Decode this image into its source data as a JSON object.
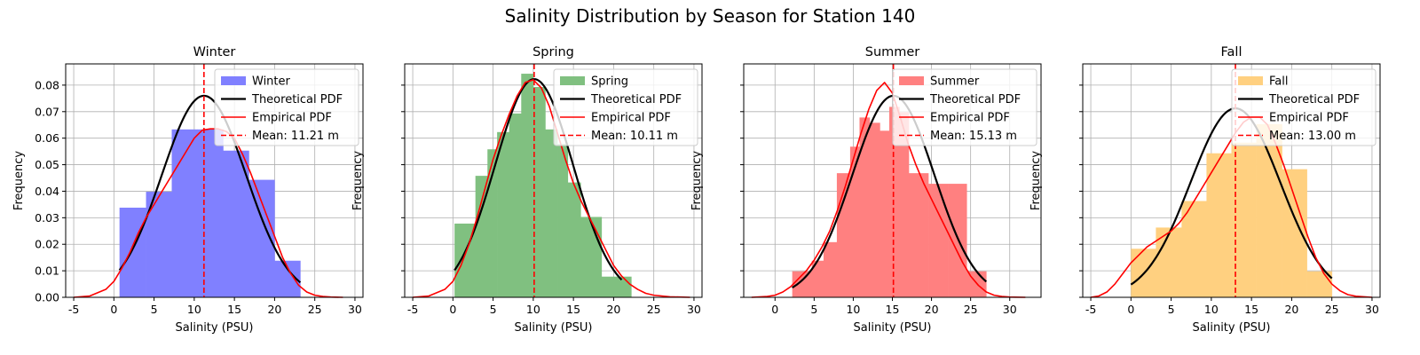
{
  "figure": {
    "title": "Salinity Distribution by Season for Station 140"
  },
  "chart_data": [
    {
      "type": "bar",
      "title": "Winter",
      "xlabel": "Salinity (PSU)",
      "ylabel": "Frequency",
      "xlim": [
        -6,
        31
      ],
      "ylim": [
        0,
        0.088
      ],
      "xticks": [
        -5,
        0,
        5,
        10,
        15,
        20,
        25,
        30
      ],
      "yticks": [
        0.0,
        0.01,
        0.02,
        0.03,
        0.04,
        0.05,
        0.06,
        0.07,
        0.08
      ],
      "grid": true,
      "legend_position": "top-right",
      "color": "#8080ff",
      "histogram": {
        "name": "Winter",
        "bin_edges": [
          0.7,
          4.0,
          7.2,
          10.4,
          13.6,
          16.8,
          20.0,
          23.2
        ],
        "values": [
          0.0338,
          0.0398,
          0.0633,
          0.0633,
          0.0553,
          0.0443,
          0.0138
        ]
      },
      "theoretical_pdf": {
        "name": "Theoretical PDF",
        "mean": 11.21,
        "sd": 5.25,
        "x_range": [
          0.7,
          23.2
        ]
      },
      "empirical_pdf": {
        "name": "Empirical PDF",
        "x": [
          -5,
          -3,
          -1,
          0,
          1,
          2,
          3,
          4,
          5,
          6,
          7,
          8,
          9,
          10,
          11,
          12,
          13,
          14,
          15,
          16,
          17,
          18,
          19,
          20,
          21,
          22,
          23,
          24,
          25,
          26,
          27,
          28.5
        ],
        "y": [
          0.0,
          0.0005,
          0.003,
          0.006,
          0.011,
          0.017,
          0.024,
          0.03,
          0.035,
          0.04,
          0.045,
          0.05,
          0.055,
          0.06,
          0.063,
          0.0635,
          0.0635,
          0.0625,
          0.06,
          0.054,
          0.047,
          0.039,
          0.031,
          0.023,
          0.015,
          0.009,
          0.0045,
          0.002,
          0.0008,
          0.0003,
          0.0001,
          0.0
        ]
      },
      "mean_line": {
        "value": 11.21,
        "label": "Mean: 11.21 m"
      }
    },
    {
      "type": "bar",
      "title": "Spring",
      "xlabel": "Salinity (PSU)",
      "ylabel": "Frequency",
      "xlim": [
        -6,
        31
      ],
      "ylim": [
        0,
        0.088
      ],
      "xticks": [
        -5,
        0,
        5,
        10,
        15,
        20,
        25,
        30
      ],
      "yticks": [],
      "grid": true,
      "legend_position": "top-right",
      "color": "#80c080",
      "histogram": {
        "name": "Spring",
        "bin_edges": [
          0.2,
          2.8,
          5.5,
          8.0,
          10.7,
          13.3,
          15.9,
          18.5,
          21.1
        ],
        "values": [
          0.0278,
          0.0458,
          0.0623,
          0.0843,
          0.0633,
          0.0433,
          0.0303,
          0.0078
        ],
        "bins": [
          [
            0.2,
            2.8,
            0.0278
          ],
          [
            2.8,
            4.3,
            0.0458
          ],
          [
            4.3,
            5.5,
            0.0558
          ],
          [
            5.5,
            7.0,
            0.0623
          ],
          [
            7.0,
            8.5,
            0.0693
          ],
          [
            8.5,
            10.0,
            0.0843
          ],
          [
            10.0,
            11.5,
            0.0793
          ],
          [
            11.5,
            13.0,
            0.0633
          ],
          [
            13.0,
            14.3,
            0.0578
          ],
          [
            14.3,
            15.9,
            0.0433
          ],
          [
            15.9,
            18.5,
            0.0303
          ],
          [
            18.5,
            20.0,
            0.0078
          ],
          [
            20.0,
            22.2,
            0.0078
          ]
        ]
      },
      "theoretical_pdf": {
        "name": "Theoretical PDF",
        "mean": 10.11,
        "sd": 4.85,
        "x_range": [
          0.2,
          21.0
        ]
      },
      "empirical_pdf": {
        "name": "Empirical PDF",
        "x": [
          -5,
          -3,
          -1,
          0,
          1,
          2,
          3,
          4,
          5,
          6,
          7,
          8,
          9,
          10,
          11,
          12,
          13,
          14,
          15,
          16,
          17,
          18,
          19,
          20,
          21,
          22,
          23,
          24,
          25,
          27,
          29.5
        ],
        "y": [
          0.0,
          0.0005,
          0.003,
          0.006,
          0.012,
          0.02,
          0.03,
          0.041,
          0.052,
          0.061,
          0.069,
          0.076,
          0.081,
          0.082,
          0.079,
          0.072,
          0.062,
          0.052,
          0.043,
          0.036,
          0.03,
          0.024,
          0.018,
          0.012,
          0.008,
          0.005,
          0.003,
          0.0015,
          0.0008,
          0.0002,
          0.0
        ]
      },
      "mean_line": {
        "value": 10.11,
        "label": "Mean: 10.11 m"
      }
    },
    {
      "type": "bar",
      "title": "Summer",
      "xlabel": "Salinity (PSU)",
      "ylabel": "Frequency",
      "xlim": [
        -4,
        34
      ],
      "ylim": [
        0,
        0.088
      ],
      "xticks": [
        0,
        5,
        10,
        15,
        20,
        25,
        30
      ],
      "yticks": [],
      "grid": true,
      "legend_position": "top-right",
      "color": "#ff8080",
      "histogram": {
        "name": "Summer",
        "bin_edges": [
          2.2,
          4.7,
          7.1,
          9.6,
          12.1,
          14.6,
          17.1,
          19.6,
          22.1,
          24.5,
          27.0
        ],
        "values": [
          0.0098,
          0.0208,
          0.0468,
          0.0678,
          0.0658,
          0.0628,
          0.0468,
          0.0428,
          0.0098,
          0.0098
        ],
        "bins": [
          [
            2.2,
            4.7,
            0.0098
          ],
          [
            4.7,
            6.2,
            0.0138
          ],
          [
            6.2,
            7.9,
            0.0208
          ],
          [
            7.9,
            9.6,
            0.0468
          ],
          [
            9.6,
            10.8,
            0.0568
          ],
          [
            10.8,
            12.1,
            0.0678
          ],
          [
            12.1,
            13.4,
            0.0658
          ],
          [
            13.4,
            14.6,
            0.0628
          ],
          [
            14.6,
            15.9,
            0.0718
          ],
          [
            15.9,
            17.1,
            0.0698
          ],
          [
            17.1,
            18.5,
            0.0468
          ],
          [
            18.5,
            19.6,
            0.0468
          ],
          [
            19.6,
            22.1,
            0.0428
          ],
          [
            22.1,
            24.5,
            0.0428
          ],
          [
            24.5,
            27.0,
            0.0098
          ]
        ]
      },
      "theoretical_pdf": {
        "name": "Theoretical PDF",
        "mean": 15.13,
        "sd": 5.25,
        "x_range": [
          2.2,
          27.0
        ]
      },
      "empirical_pdf": {
        "name": "Empirical PDF",
        "x": [
          -3,
          -1,
          0,
          1,
          2,
          3,
          4,
          5,
          6,
          7,
          8,
          9,
          10,
          11,
          12,
          13,
          14,
          15,
          16,
          17,
          18,
          19,
          20,
          21,
          22,
          23,
          24,
          25,
          26,
          27,
          28,
          29,
          30,
          32
        ],
        "y": [
          0.0,
          0.0003,
          0.0008,
          0.002,
          0.004,
          0.007,
          0.01,
          0.014,
          0.019,
          0.025,
          0.033,
          0.042,
          0.052,
          0.062,
          0.071,
          0.078,
          0.081,
          0.077,
          0.068,
          0.058,
          0.05,
          0.043,
          0.037,
          0.031,
          0.025,
          0.019,
          0.013,
          0.008,
          0.0045,
          0.002,
          0.0008,
          0.0003,
          0.0001,
          0.0
        ]
      },
      "mean_line": {
        "value": 15.13,
        "label": "Mean: 15.13 m"
      }
    },
    {
      "type": "bar",
      "title": "Fall",
      "xlabel": "Salinity (PSU)",
      "ylabel": "Frequency",
      "xlim": [
        -6,
        31
      ],
      "ylim": [
        0,
        0.088
      ],
      "xticks": [
        -5,
        0,
        5,
        10,
        15,
        20,
        25,
        30
      ],
      "yticks": [],
      "grid": true,
      "legend_position": "top-right",
      "color": "#ffd080",
      "histogram": {
        "name": "Fall",
        "bin_edges": [
          0.0,
          3.1,
          6.3,
          9.4,
          12.5,
          15.6,
          18.8,
          21.9,
          25.0
        ],
        "values": [
          0.0183,
          0.0263,
          0.0363,
          0.0543,
          0.0583,
          0.0653,
          0.0483,
          0.0098
        ]
      },
      "theoretical_pdf": {
        "name": "Theoretical PDF",
        "mean": 13.0,
        "sd": 5.6,
        "x_range": [
          0.0,
          25.0
        ]
      },
      "empirical_pdf": {
        "name": "Empirical PDF",
        "x": [
          -5,
          -4,
          -3,
          -2,
          -1,
          0,
          1,
          2,
          3,
          4,
          5,
          6,
          7,
          8,
          9,
          10,
          11,
          12,
          13,
          14,
          15,
          16,
          17,
          18,
          19,
          20,
          21,
          22,
          23,
          24,
          25,
          26,
          27,
          28,
          30
        ],
        "y": [
          0.0,
          0.0005,
          0.002,
          0.005,
          0.009,
          0.013,
          0.016,
          0.019,
          0.021,
          0.023,
          0.025,
          0.028,
          0.032,
          0.037,
          0.042,
          0.047,
          0.052,
          0.057,
          0.062,
          0.066,
          0.068,
          0.068,
          0.065,
          0.058,
          0.05,
          0.041,
          0.032,
          0.023,
          0.015,
          0.009,
          0.005,
          0.0025,
          0.001,
          0.0004,
          0.0
        ]
      },
      "mean_line": {
        "value": 13.0,
        "label": "Mean: 13.00 m"
      }
    }
  ]
}
